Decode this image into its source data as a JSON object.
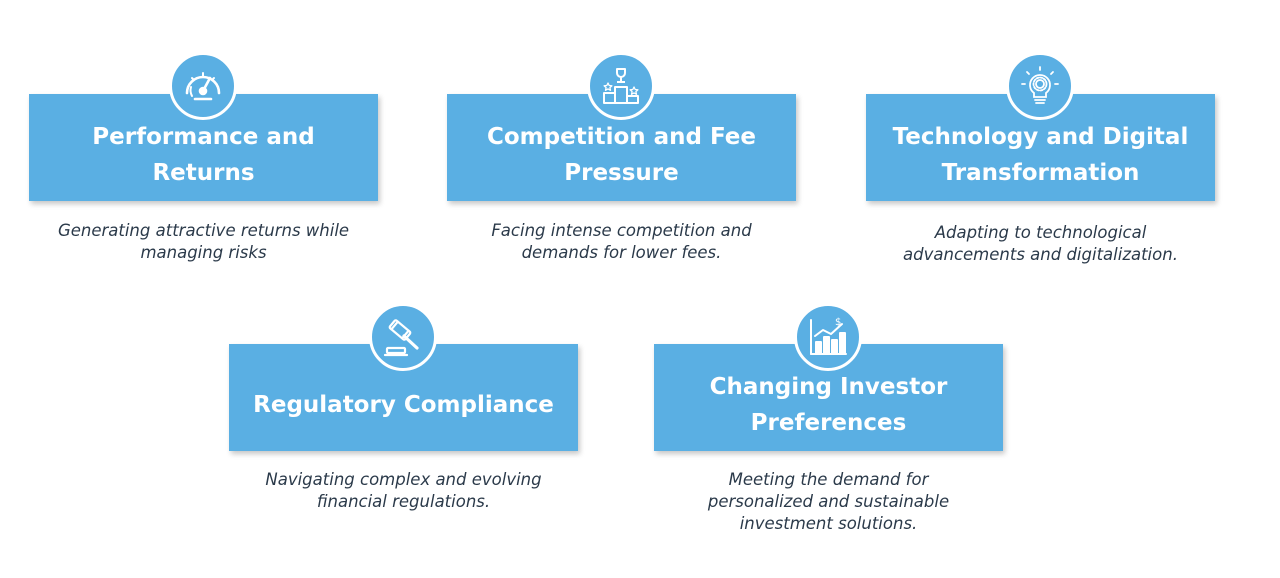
{
  "cards": [
    {
      "title": "Performance and Returns",
      "description": "Generating attractive returns while managing risks",
      "icon": "speedometer-icon"
    },
    {
      "title": "Competition and Fee Pressure",
      "description": "Facing intense competition and demands for lower fees.",
      "icon": "podium-trophy-icon"
    },
    {
      "title": "Technology and Digital Transformation",
      "description": "Adapting to technological advancements and digitalization.",
      "icon": "lightbulb-gear-icon"
    },
    {
      "title": "Regulatory Compliance",
      "description": "Navigating complex and evolving financial regulations.",
      "icon": "gavel-icon"
    },
    {
      "title": "Changing Investor Preferences",
      "description": "Meeting the demand for personalized and sustainable investment solutions.",
      "icon": "bar-chart-dollar-icon"
    }
  ],
  "colors": {
    "accent": "#5aafe3",
    "text": "#2b3a4a"
  }
}
